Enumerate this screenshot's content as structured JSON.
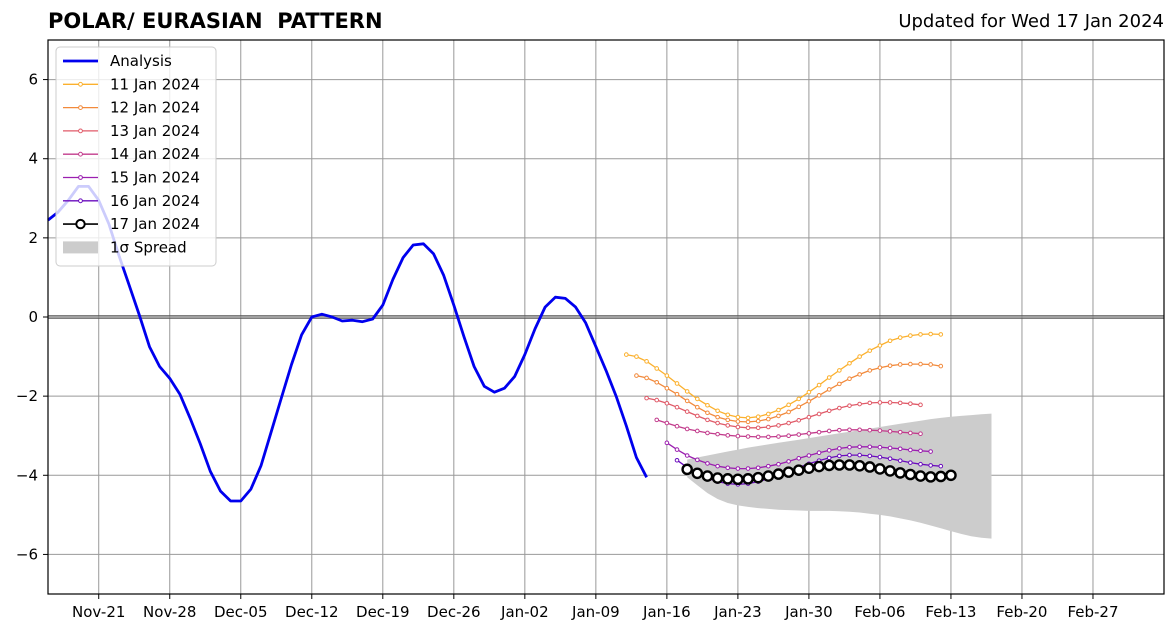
{
  "title": "POLAR/ EURASIAN  PATTERN",
  "updated": "Updated for Wed 17 Jan 2024",
  "chart_data": {
    "type": "line",
    "title": "POLAR/ EURASIAN  PATTERN",
    "subtitle": "Updated for Wed 17 Jan 2024",
    "xlabel": "",
    "ylabel": "",
    "xlim": [
      "2023-11-16",
      "2024-03-05"
    ],
    "ylim": [
      -7,
      7
    ],
    "x_tick_labels": [
      "Nov-21",
      "Nov-28",
      "Dec-05",
      "Dec-12",
      "Dec-19",
      "Dec-26",
      "Jan-02",
      "Jan-09",
      "Jan-16",
      "Jan-23",
      "Jan-30",
      "Feb-06",
      "Feb-13",
      "Feb-20",
      "Feb-27"
    ],
    "x_tick_dates": [
      "2023-11-21",
      "2023-11-28",
      "2023-12-05",
      "2023-12-12",
      "2023-12-19",
      "2023-12-26",
      "2024-01-02",
      "2024-01-09",
      "2024-01-16",
      "2024-01-23",
      "2024-01-30",
      "2024-02-06",
      "2024-02-13",
      "2024-02-20",
      "2024-02-27"
    ],
    "y_ticks": [
      -6,
      -4,
      -2,
      0,
      2,
      4,
      6
    ],
    "y_tick_labels": [
      "−6",
      "−4",
      "−2",
      "0",
      "2",
      "4",
      "6"
    ],
    "grid": true,
    "zero_line": true,
    "legend_position": "top-left",
    "analysis": {
      "name": "Analysis",
      "color": "#0000ee",
      "start": "2023-11-16",
      "values": [
        2.45,
        2.65,
        2.95,
        3.3,
        3.3,
        2.95,
        2.35,
        1.55,
        0.8,
        0.05,
        -0.75,
        -1.25,
        -1.55,
        -1.95,
        -2.55,
        -3.2,
        -3.9,
        -4.4,
        -4.65,
        -4.65,
        -4.35,
        -3.75,
        -2.9,
        -2.05,
        -1.2,
        -0.45,
        0.0,
        0.07,
        0.0,
        -0.1,
        -0.08,
        -0.12,
        -0.05,
        0.3,
        0.95,
        1.5,
        1.82,
        1.85,
        1.6,
        1.05,
        0.3,
        -0.5,
        -1.25,
        -1.75,
        -1.9,
        -1.8,
        -1.5,
        -0.95,
        -0.3,
        0.25,
        0.5,
        0.47,
        0.25,
        -0.15,
        -0.75,
        -1.35,
        -2.0,
        -2.75,
        -3.55,
        -4.05
      ]
    },
    "forecasts": [
      {
        "name": "11 Jan 2024",
        "color": "#fbb02d",
        "start": "2024-01-12",
        "values": [
          -0.95,
          -1.0,
          -1.12,
          -1.3,
          -1.48,
          -1.68,
          -1.88,
          -2.07,
          -2.23,
          -2.37,
          -2.47,
          -2.53,
          -2.55,
          -2.52,
          -2.45,
          -2.35,
          -2.22,
          -2.07,
          -1.9,
          -1.72,
          -1.53,
          -1.35,
          -1.17,
          -1.0,
          -0.85,
          -0.72,
          -0.6,
          -0.52,
          -0.47,
          -0.44,
          -0.43,
          -0.44
        ]
      },
      {
        "name": "12 Jan 2024",
        "color": "#f28a3c",
        "start": "2024-01-13",
        "values": [
          -1.48,
          -1.54,
          -1.65,
          -1.8,
          -1.95,
          -2.12,
          -2.28,
          -2.42,
          -2.53,
          -2.6,
          -2.64,
          -2.65,
          -2.63,
          -2.58,
          -2.5,
          -2.4,
          -2.27,
          -2.13,
          -1.98,
          -1.83,
          -1.69,
          -1.56,
          -1.45,
          -1.35,
          -1.28,
          -1.23,
          -1.2,
          -1.19,
          -1.19,
          -1.2,
          -1.24
        ]
      },
      {
        "name": "13 Jan 2024",
        "color": "#e05a68",
        "start": "2024-01-14",
        "values": [
          -2.05,
          -2.1,
          -2.18,
          -2.28,
          -2.39,
          -2.5,
          -2.6,
          -2.68,
          -2.74,
          -2.78,
          -2.8,
          -2.8,
          -2.78,
          -2.74,
          -2.68,
          -2.61,
          -2.53,
          -2.45,
          -2.37,
          -2.3,
          -2.24,
          -2.2,
          -2.17,
          -2.16,
          -2.16,
          -2.17,
          -2.19,
          -2.22
        ]
      },
      {
        "name": "14 Jan 2024",
        "color": "#c23b8c",
        "start": "2024-01-15",
        "values": [
          -2.6,
          -2.68,
          -2.76,
          -2.83,
          -2.88,
          -2.93,
          -2.96,
          -2.99,
          -3.01,
          -3.02,
          -3.03,
          -3.03,
          -3.02,
          -3.0,
          -2.97,
          -2.94,
          -2.91,
          -2.88,
          -2.86,
          -2.85,
          -2.85,
          -2.86,
          -2.87,
          -2.89,
          -2.91,
          -2.93,
          -2.95
        ]
      },
      {
        "name": "15 Jan 2024",
        "color": "#9b1fb0",
        "start": "2024-01-16",
        "values": [
          -3.18,
          -3.35,
          -3.5,
          -3.61,
          -3.7,
          -3.77,
          -3.81,
          -3.83,
          -3.83,
          -3.81,
          -3.77,
          -3.72,
          -3.65,
          -3.57,
          -3.5,
          -3.43,
          -3.37,
          -3.32,
          -3.29,
          -3.28,
          -3.28,
          -3.29,
          -3.31,
          -3.33,
          -3.36,
          -3.38,
          -3.4
        ]
      },
      {
        "name": "16 Jan 2024",
        "color": "#6a0bbd",
        "start": "2024-01-17",
        "values": [
          -3.62,
          -3.8,
          -3.95,
          -4.07,
          -4.16,
          -4.21,
          -4.23,
          -4.21,
          -4.16,
          -4.09,
          -4.0,
          -3.9,
          -3.8,
          -3.71,
          -3.63,
          -3.56,
          -3.51,
          -3.49,
          -3.49,
          -3.51,
          -3.54,
          -3.58,
          -3.63,
          -3.68,
          -3.72,
          -3.75,
          -3.77
        ]
      },
      {
        "name": "17 Jan 2024",
        "color": "#000000",
        "fill": "#ffffff",
        "start": "2024-01-18",
        "values": [
          -3.85,
          -3.95,
          -4.02,
          -4.07,
          -4.09,
          -4.1,
          -4.09,
          -4.06,
          -4.02,
          -3.97,
          -3.92,
          -3.87,
          -3.82,
          -3.78,
          -3.75,
          -3.74,
          -3.74,
          -3.76,
          -3.79,
          -3.84,
          -3.89,
          -3.94,
          -3.98,
          -4.02,
          -4.04,
          -4.03,
          -4.0
        ]
      }
    ],
    "spread": {
      "name": "1σ Spread",
      "color": "#cccccc",
      "start": "2024-01-18",
      "upper": [
        -3.6,
        -3.55,
        -3.5,
        -3.45,
        -3.4,
        -3.35,
        -3.3,
        -3.26,
        -3.22,
        -3.18,
        -3.14,
        -3.1,
        -3.06,
        -3.02,
        -2.98,
        -2.94,
        -2.9,
        -2.86,
        -2.82,
        -2.78,
        -2.74,
        -2.7,
        -2.66,
        -2.62,
        -2.58,
        -2.55,
        -2.52,
        -2.5,
        -2.48,
        -2.46,
        -2.44
      ],
      "lower": [
        -4.05,
        -4.25,
        -4.45,
        -4.6,
        -4.7,
        -4.76,
        -4.8,
        -4.83,
        -4.85,
        -4.87,
        -4.88,
        -4.89,
        -4.9,
        -4.9,
        -4.9,
        -4.91,
        -4.92,
        -4.94,
        -4.97,
        -5.0,
        -5.04,
        -5.09,
        -5.14,
        -5.2,
        -5.27,
        -5.34,
        -5.41,
        -5.48,
        -5.54,
        -5.58,
        -5.6
      ]
    }
  }
}
